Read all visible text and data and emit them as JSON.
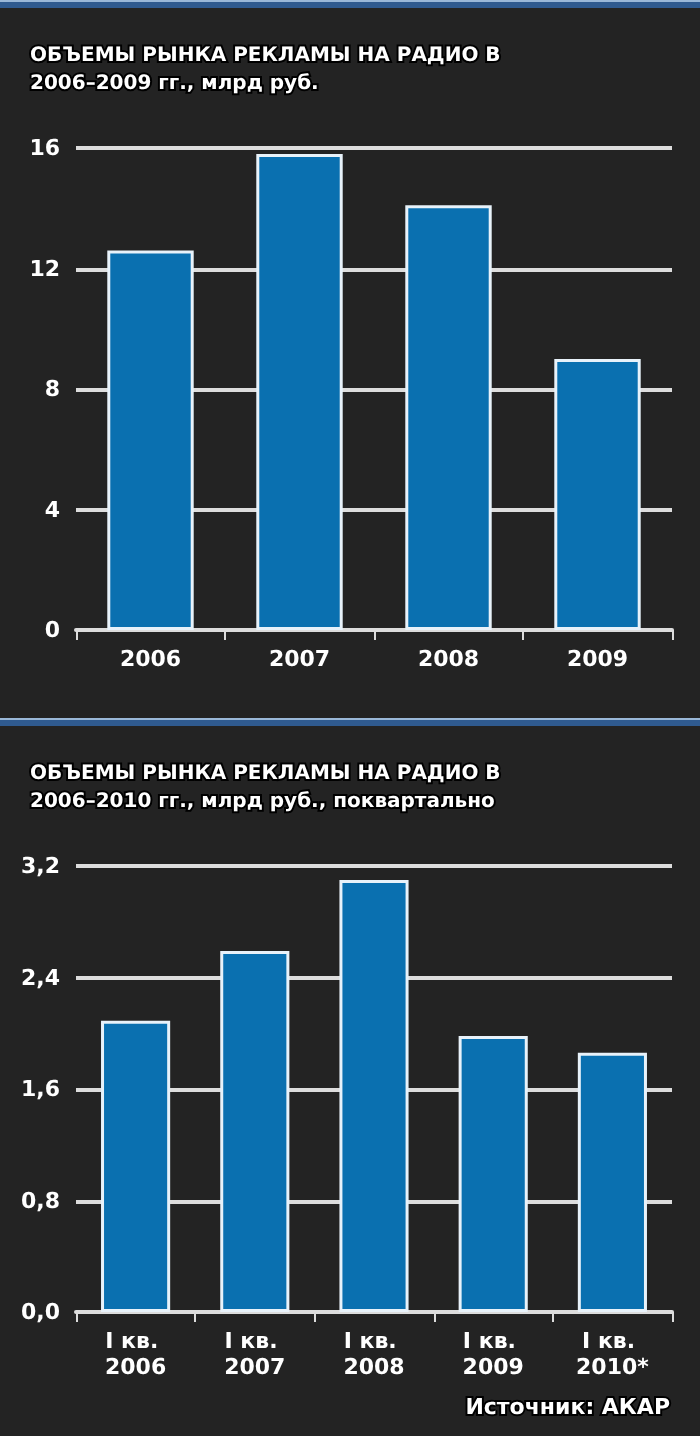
{
  "chart_data": [
    {
      "type": "bar",
      "title": "ОБЪЕМЫ РЫНКА РЕКЛАМЫ НА РАДИО В 2006–2009 гг., млрд руб.",
      "categories": [
        "2006",
        "2007",
        "2008",
        "2009"
      ],
      "values": [
        12.6,
        15.8,
        14.1,
        9.0
      ],
      "color": "#0a70b0",
      "ylim": [
        0,
        16
      ],
      "yticks": [
        0,
        4,
        8,
        12,
        16
      ],
      "grid": "y"
    },
    {
      "type": "bar",
      "title": "ОБЪЕМЫ РЫНКА РЕКЛАМЫ НА РАДИО В 2006–2010 гг., млрд руб., поквартально",
      "categories": [
        "I кв. 2006",
        "I кв. 2007",
        "I кв. 2008",
        "I кв. 2009",
        "I кв. 2010*"
      ],
      "values": [
        2.09,
        2.59,
        3.1,
        1.98,
        1.86
      ],
      "color": "#0a70b0",
      "ylim": [
        0,
        3.2
      ],
      "yticks": [
        {
          "value": 0,
          "label": "0,0"
        },
        {
          "value": 0.8,
          "label": "0,8"
        },
        {
          "value": 1.6,
          "label": "1,6"
        },
        {
          "value": 2.4,
          "label": "2,4"
        },
        {
          "value": 3.2,
          "label": "3,2"
        }
      ],
      "grid": "y",
      "annotations": [
        "Источник: АКАР"
      ]
    }
  ]
}
